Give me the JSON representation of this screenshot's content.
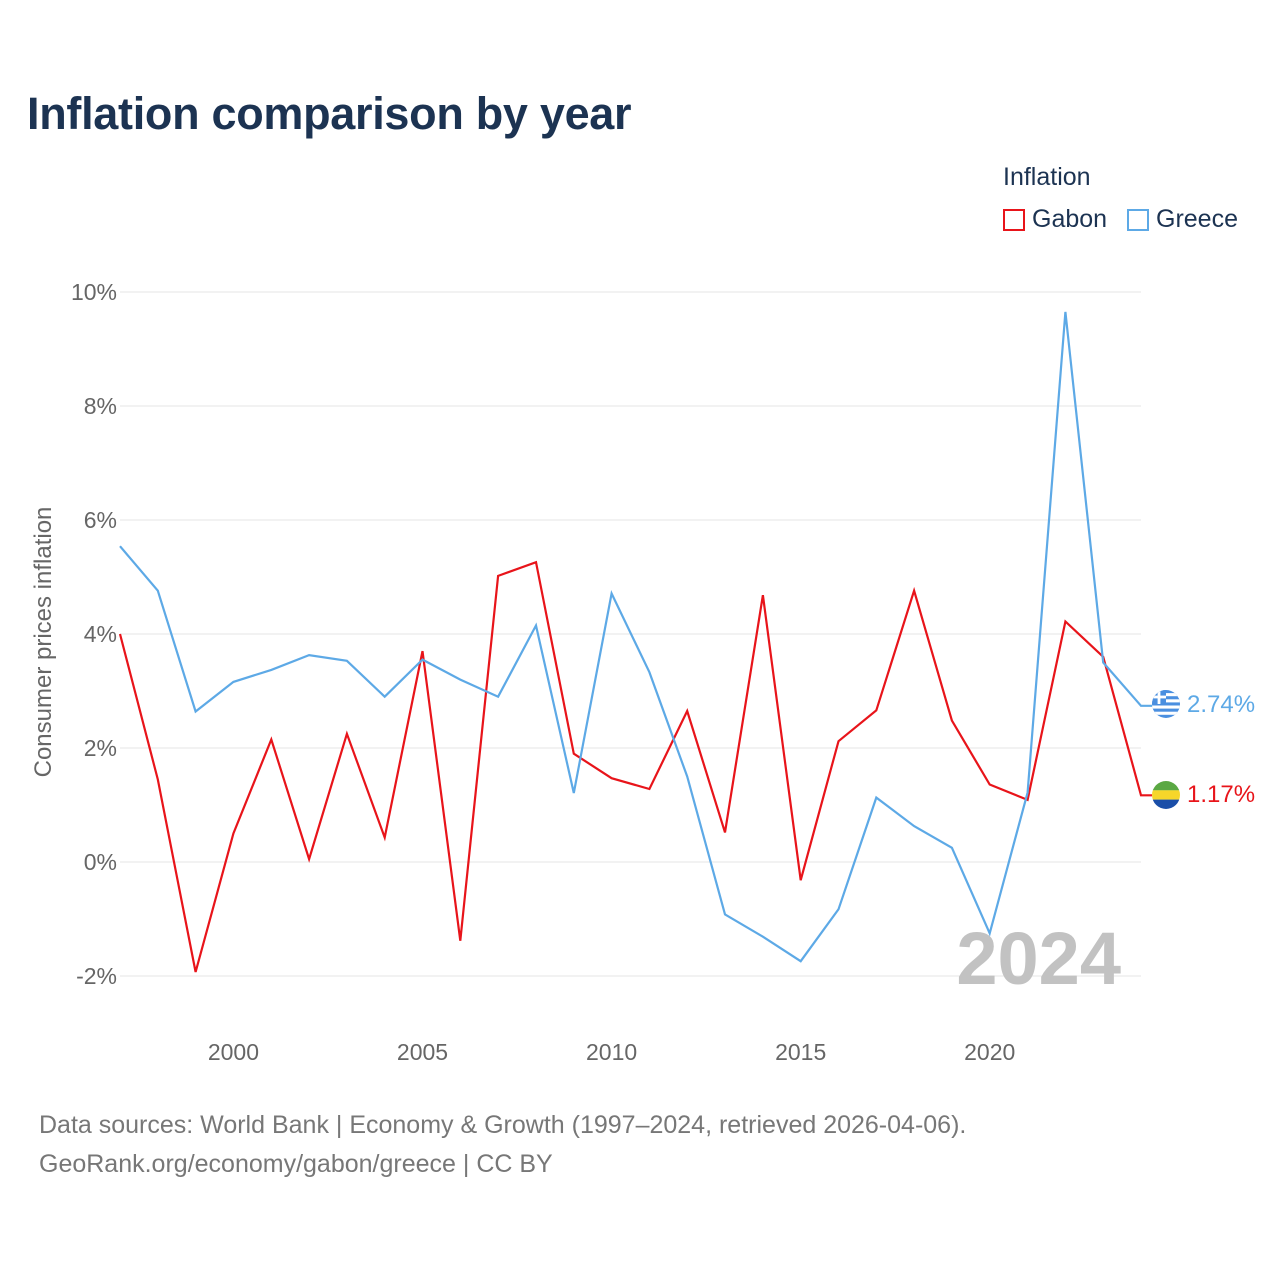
{
  "title": "Inflation comparison by year",
  "legend": {
    "title": "Inflation",
    "items": [
      {
        "label": "Gabon",
        "color": "#e8141a"
      },
      {
        "label": "Greece",
        "color": "#5da9e6"
      }
    ]
  },
  "chart_data": {
    "type": "line",
    "ylabel": "Consumer prices inflation",
    "xlabel": "",
    "xlim": [
      1997,
      2024
    ],
    "ylim": [
      -3,
      10.6
    ],
    "x_ticks": [
      2000,
      2005,
      2010,
      2015,
      2020
    ],
    "y_ticks": [
      {
        "value": 10,
        "label": "10%"
      },
      {
        "value": 8,
        "label": "8%"
      },
      {
        "value": 6,
        "label": "6%"
      },
      {
        "value": 4,
        "label": "4%"
      },
      {
        "value": 2,
        "label": "2%"
      },
      {
        "value": 0,
        "label": "0%"
      },
      {
        "value": -2,
        "label": "-2%"
      }
    ],
    "grid": true,
    "x": [
      1997,
      1998,
      1999,
      2000,
      2001,
      2002,
      2003,
      2004,
      2005,
      2006,
      2007,
      2008,
      2009,
      2010,
      2011,
      2012,
      2013,
      2014,
      2015,
      2016,
      2017,
      2018,
      2019,
      2020,
      2021,
      2022,
      2023,
      2024
    ],
    "series": [
      {
        "name": "Gabon",
        "color": "#e8141a",
        "end_label": "1.17%",
        "values": [
          4.0,
          1.45,
          -1.93,
          0.5,
          2.15,
          0.05,
          2.25,
          0.43,
          3.7,
          -1.38,
          5.02,
          5.26,
          1.9,
          1.47,
          1.28,
          2.65,
          0.52,
          4.68,
          -0.32,
          2.12,
          2.66,
          4.76,
          2.48,
          1.36,
          1.09,
          4.22,
          3.6,
          1.17
        ]
      },
      {
        "name": "Greece",
        "color": "#5da9e6",
        "end_label": "2.74%",
        "values": [
          5.54,
          4.76,
          2.64,
          3.16,
          3.37,
          3.63,
          3.53,
          2.9,
          3.55,
          3.2,
          2.9,
          4.15,
          1.21,
          4.71,
          3.33,
          1.5,
          -0.92,
          -1.31,
          -1.74,
          -0.83,
          1.13,
          0.63,
          0.25,
          -1.25,
          1.22,
          9.65,
          3.5,
          2.74
        ]
      }
    ],
    "watermark_year": "2024"
  },
  "footer": {
    "line1": "Data sources: World Bank | Economy & Growth (1997–2024, retrieved 2026-04-06).",
    "line2": "GeoRank.org/economy/gabon/greece | CC BY"
  }
}
